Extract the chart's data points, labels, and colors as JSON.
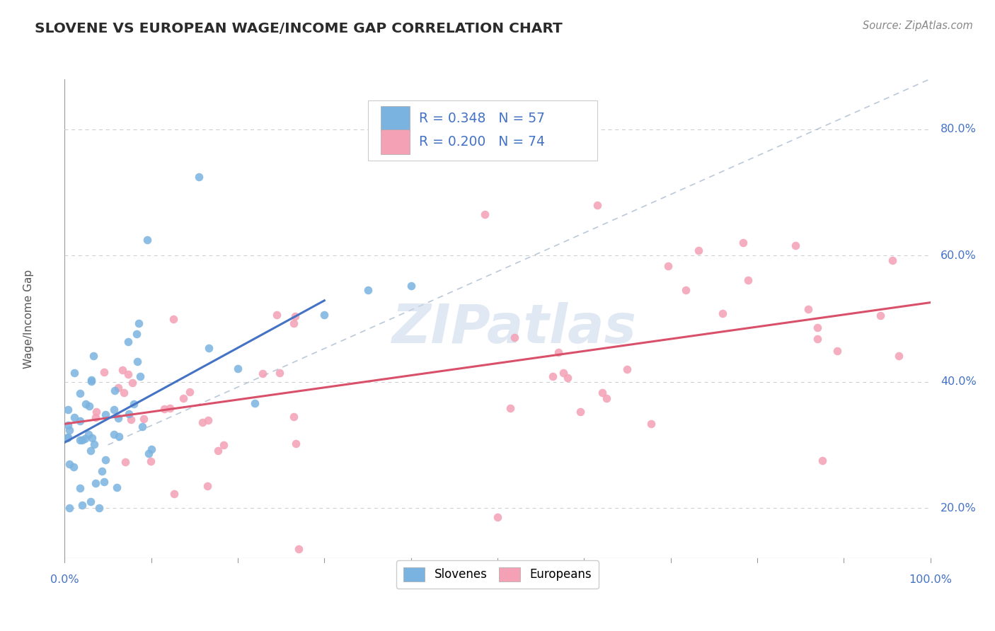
{
  "title": "SLOVENE VS EUROPEAN WAGE/INCOME GAP CORRELATION CHART",
  "source_text": "Source: ZipAtlas.com",
  "ylabel": "Wage/Income Gap",
  "xlim": [
    0.0,
    1.0
  ],
  "ylim": [
    0.12,
    0.88
  ],
  "yticks": [
    0.2,
    0.4,
    0.6,
    0.8
  ],
  "ytick_labels": [
    "20.0%",
    "40.0%",
    "60.0%",
    "80.0%"
  ],
  "slovene_color": "#7ab3e0",
  "european_color": "#f4a0b5",
  "trend_blue": "#4472c4",
  "trend_pink": "#d9506a",
  "slovene_R": 0.348,
  "slovene_N": 57,
  "european_R": 0.2,
  "european_N": 74,
  "background_color": "#ffffff",
  "grid_color": "#cccccc",
  "title_color": "#2b2b2b",
  "axis_label_color": "#555555",
  "tick_color_right": "#4472c4",
  "watermark_text": "ZIPatlas",
  "watermark_color": "#c8d8ea",
  "legend_label_slovenes": "Slovenes",
  "legend_label_europeans": "Europeans"
}
